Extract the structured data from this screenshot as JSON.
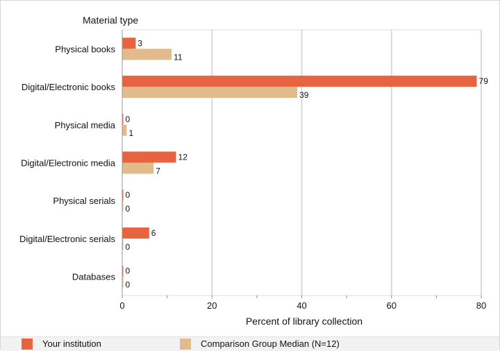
{
  "chart_data": {
    "type": "bar",
    "orientation": "horizontal",
    "title": "Material type",
    "xlabel": "Percent of library collection",
    "xlim": [
      0,
      80
    ],
    "x_ticks": [
      0,
      20,
      40,
      60,
      80
    ],
    "grid": true,
    "legend_position": "bottom",
    "categories": [
      "Physical books",
      "Digital/Electronic books",
      "Physical media",
      "Digital/Electronic media",
      "Physical serials",
      "Digital/Electronic serials",
      "Databases"
    ],
    "series": [
      {
        "name": "Your institution",
        "color": "#e8633f",
        "values": [
          3,
          79,
          0,
          12,
          0,
          6,
          0
        ]
      },
      {
        "name": "Comparison Group Median (N=12)",
        "color": "#e2bb8c",
        "values": [
          11,
          39,
          1,
          7,
          0,
          0,
          0
        ]
      }
    ]
  },
  "legend": {
    "items": [
      {
        "label": "Your institution",
        "color": "#e8633f"
      },
      {
        "label": "Comparison Group Median (N=12)",
        "color": "#e2bb8c"
      }
    ]
  }
}
